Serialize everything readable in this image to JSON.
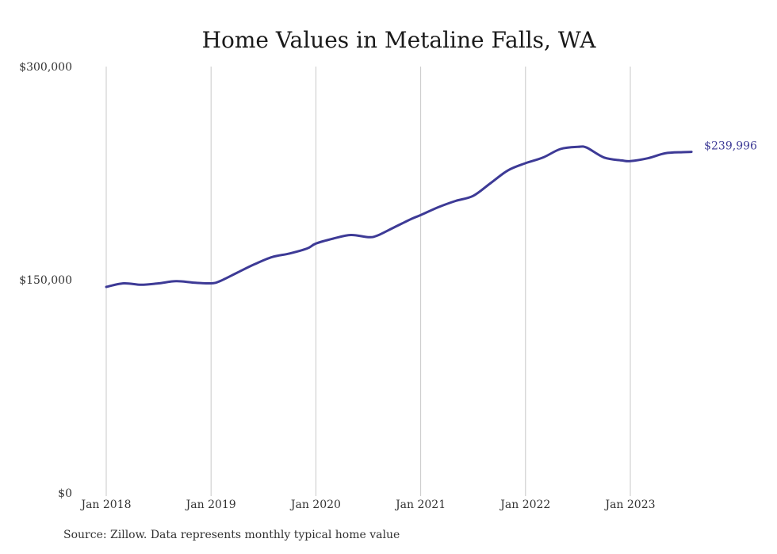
{
  "chart_data": {
    "type": "line",
    "title": "Home Values in Metaline Falls, WA",
    "ylim": [
      0,
      300000
    ],
    "y_ticks": [
      {
        "value": 0,
        "label": "$0"
      },
      {
        "value": 150000,
        "label": "$150,000"
      },
      {
        "value": 300000,
        "label": "$300,000"
      }
    ],
    "x_ticks": [
      {
        "x": "2018-01",
        "label": "Jan 2018"
      },
      {
        "x": "2019-01",
        "label": "Jan 2019"
      },
      {
        "x": "2020-01",
        "label": "Jan 2020"
      },
      {
        "x": "2021-01",
        "label": "Jan 2021"
      },
      {
        "x": "2022-01",
        "label": "Jan 2022"
      },
      {
        "x": "2023-01",
        "label": "Jan 2023"
      }
    ],
    "grid": {
      "vertical": true,
      "horizontal": false
    },
    "series": [
      {
        "color": "#3d3a96",
        "end_label": "$239,996",
        "points": [
          {
            "x": "2018-01",
            "y": 145000
          },
          {
            "x": "2018-03",
            "y": 147500
          },
          {
            "x": "2018-05",
            "y": 146500
          },
          {
            "x": "2018-07",
            "y": 147500
          },
          {
            "x": "2018-09",
            "y": 149000
          },
          {
            "x": "2018-11",
            "y": 148000
          },
          {
            "x": "2019-01",
            "y": 147500
          },
          {
            "x": "2019-02",
            "y": 149000
          },
          {
            "x": "2019-04",
            "y": 155000
          },
          {
            "x": "2019-06",
            "y": 161000
          },
          {
            "x": "2019-08",
            "y": 166000
          },
          {
            "x": "2019-10",
            "y": 168500
          },
          {
            "x": "2019-12",
            "y": 172000
          },
          {
            "x": "2020-01",
            "y": 175500
          },
          {
            "x": "2020-03",
            "y": 179000
          },
          {
            "x": "2020-05",
            "y": 181500
          },
          {
            "x": "2020-07",
            "y": 180000
          },
          {
            "x": "2020-08",
            "y": 181000
          },
          {
            "x": "2020-10",
            "y": 187000
          },
          {
            "x": "2020-12",
            "y": 193000
          },
          {
            "x": "2021-01",
            "y": 195500
          },
          {
            "x": "2021-03",
            "y": 201000
          },
          {
            "x": "2021-05",
            "y": 205500
          },
          {
            "x": "2021-07",
            "y": 209000
          },
          {
            "x": "2021-09",
            "y": 218000
          },
          {
            "x": "2021-11",
            "y": 227000
          },
          {
            "x": "2022-01",
            "y": 232000
          },
          {
            "x": "2022-03",
            "y": 236000
          },
          {
            "x": "2022-05",
            "y": 242000
          },
          {
            "x": "2022-07",
            "y": 243500
          },
          {
            "x": "2022-08",
            "y": 243000
          },
          {
            "x": "2022-10",
            "y": 236000
          },
          {
            "x": "2022-12",
            "y": 234000
          },
          {
            "x": "2023-01",
            "y": 233500
          },
          {
            "x": "2023-03",
            "y": 235500
          },
          {
            "x": "2023-05",
            "y": 239000
          },
          {
            "x": "2023-07",
            "y": 239800
          },
          {
            "x": "2023-08",
            "y": 239996
          }
        ]
      }
    ]
  },
  "source_note": "Source: Zillow. Data represents monthly typical home value"
}
